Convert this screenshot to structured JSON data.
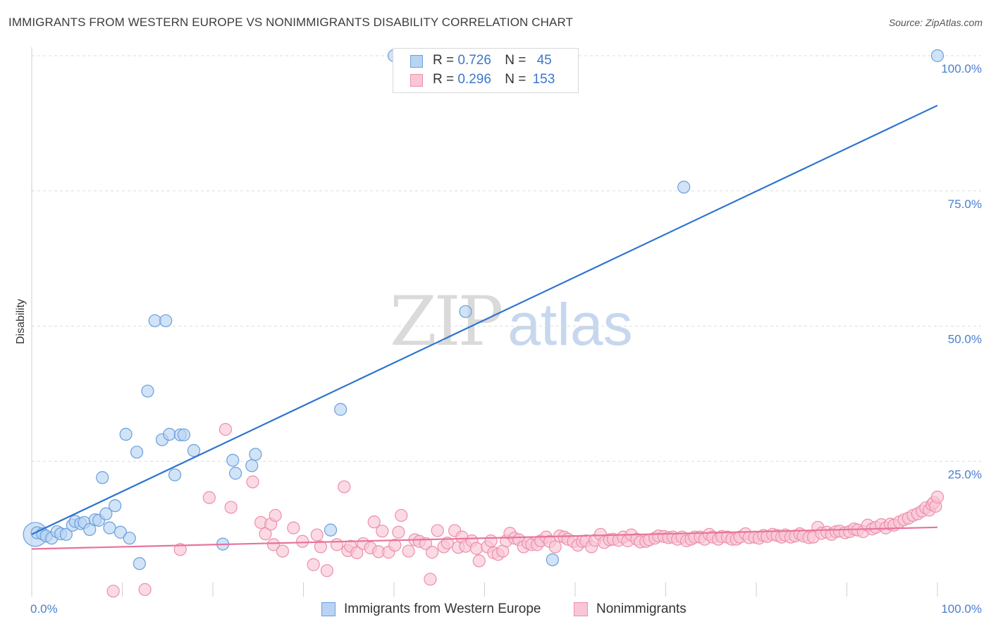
{
  "header": {
    "title": "IMMIGRANTS FROM WESTERN EUROPE VS NONIMMIGRANTS DISABILITY CORRELATION CHART",
    "source": "Source: ZipAtlas.com"
  },
  "watermark": {
    "zip": "ZIP",
    "atlas": "atlas"
  },
  "legend": {
    "rows": [
      {
        "r_label": "R =",
        "r_value": "0.726",
        "n_label": "N =",
        "n_value": "45"
      },
      {
        "r_label": "R =",
        "r_value": "0.296",
        "n_label": "N =",
        "n_value": "153"
      }
    ]
  },
  "bottom_legend": {
    "items": [
      {
        "label": "Immigrants from Western Europe"
      },
      {
        "label": "Nonimmigrants"
      }
    ]
  },
  "colors": {
    "blue_fill": "#b9d4f3",
    "blue_stroke": "#6a9fdc",
    "blue_line": "#2f74d0",
    "pink_fill": "#f9c6d6",
    "pink_stroke": "#ec8fac",
    "pink_line": "#e8739a",
    "grid": "#dcdcdc",
    "axis_text": "#4a7fcf"
  },
  "chart_data": {
    "type": "scatter",
    "title": "IMMIGRANTS FROM WESTERN EUROPE VS NONIMMIGRANTS DISABILITY CORRELATION CHART",
    "xlabel": "",
    "ylabel": "Disability",
    "xlim": [
      0,
      100
    ],
    "ylim": [
      0,
      100
    ],
    "x_tick_labels": [
      "0.0%",
      "100.0%"
    ],
    "y_ticks": [
      25,
      50,
      75,
      100
    ],
    "y_tick_labels": [
      "25.0%",
      "50.0%",
      "75.0%",
      "100.0%"
    ],
    "grid": true,
    "legend_position": "top-center",
    "series": [
      {
        "name": "Immigrants from Western Europe",
        "color": "blue",
        "R": 0.726,
        "N": 45,
        "trend": {
          "x": [
            0,
            100
          ],
          "y": [
            11.5,
            90.8
          ]
        },
        "points": [
          [
            0.4,
            11.5,
            "big"
          ],
          [
            0.6,
            11.8
          ],
          [
            1.2,
            11.6
          ],
          [
            1.6,
            11.2
          ],
          [
            2.2,
            10.8
          ],
          [
            2.8,
            12.0
          ],
          [
            3.2,
            11.6
          ],
          [
            3.8,
            11.5
          ],
          [
            4.5,
            13.2
          ],
          [
            4.8,
            13.9
          ],
          [
            5.4,
            13.5
          ],
          [
            5.8,
            13.7
          ],
          [
            6.4,
            12.4
          ],
          [
            7.0,
            14.2
          ],
          [
            7.4,
            14.1
          ],
          [
            7.8,
            22.0
          ],
          [
            8.2,
            15.3
          ],
          [
            8.6,
            12.7
          ],
          [
            9.2,
            16.8
          ],
          [
            9.8,
            11.9
          ],
          [
            10.4,
            30.0
          ],
          [
            10.8,
            10.8
          ],
          [
            11.6,
            26.7
          ],
          [
            11.9,
            6.1
          ],
          [
            12.8,
            38.0
          ],
          [
            13.6,
            51.0
          ],
          [
            14.4,
            29.0
          ],
          [
            14.8,
            51.0
          ],
          [
            15.2,
            30.0
          ],
          [
            15.8,
            22.5
          ],
          [
            16.4,
            29.9
          ],
          [
            16.8,
            29.9
          ],
          [
            17.9,
            27.0
          ],
          [
            21.1,
            9.7
          ],
          [
            22.2,
            25.2
          ],
          [
            22.5,
            22.8
          ],
          [
            24.3,
            24.2
          ],
          [
            24.7,
            26.3
          ],
          [
            33.0,
            12.3
          ],
          [
            34.1,
            34.6
          ],
          [
            40.0,
            100.0
          ],
          [
            47.9,
            52.7
          ],
          [
            57.5,
            6.8
          ],
          [
            72.0,
            75.7
          ],
          [
            100.0,
            100.0
          ]
        ]
      },
      {
        "name": "Nonimmigrants",
        "color": "pink",
        "R": 0.296,
        "N": 153,
        "trend": {
          "x": [
            0,
            100
          ],
          "y": [
            8.8,
            12.8
          ]
        },
        "points": [
          [
            9.0,
            1.0
          ],
          [
            12.5,
            1.3
          ],
          [
            16.4,
            8.7
          ],
          [
            19.6,
            18.3
          ],
          [
            21.4,
            30.9
          ],
          [
            22.0,
            16.5
          ],
          [
            24.4,
            21.2
          ],
          [
            25.3,
            13.7
          ],
          [
            25.8,
            11.6
          ],
          [
            26.4,
            13.4
          ],
          [
            26.7,
            9.6
          ],
          [
            26.9,
            15.0
          ],
          [
            27.7,
            8.4
          ],
          [
            28.9,
            12.7
          ],
          [
            29.9,
            10.2
          ],
          [
            31.1,
            5.9
          ],
          [
            31.5,
            11.4
          ],
          [
            31.9,
            9.2
          ],
          [
            32.6,
            4.8
          ],
          [
            33.7,
            9.6
          ],
          [
            34.5,
            20.3
          ],
          [
            34.9,
            8.5
          ],
          [
            35.2,
            9.3
          ],
          [
            35.9,
            8.1
          ],
          [
            36.6,
            9.8
          ],
          [
            37.4,
            9.0
          ],
          [
            37.8,
            13.8
          ],
          [
            38.3,
            8.3
          ],
          [
            38.7,
            12.1
          ],
          [
            39.4,
            8.2
          ],
          [
            40.1,
            9.5
          ],
          [
            40.5,
            11.9
          ],
          [
            40.8,
            15.0
          ],
          [
            41.6,
            8.4
          ],
          [
            42.3,
            10.5
          ],
          [
            42.8,
            10.2
          ],
          [
            43.5,
            9.8
          ],
          [
            44.0,
            3.2
          ],
          [
            44.2,
            8.2
          ],
          [
            44.8,
            12.2
          ],
          [
            45.5,
            9.2
          ],
          [
            45.9,
            9.9
          ],
          [
            46.7,
            12.2
          ],
          [
            47.1,
            9.1
          ],
          [
            47.5,
            11.0
          ],
          [
            47.9,
            9.3
          ],
          [
            48.6,
            10.3
          ],
          [
            49.1,
            8.9
          ],
          [
            49.4,
            6.6
          ],
          [
            50.3,
            9.2
          ],
          [
            50.7,
            10.3
          ],
          [
            51.0,
            8.1
          ],
          [
            51.5,
            7.8
          ],
          [
            52.0,
            8.4
          ],
          [
            52.4,
            10.3
          ],
          [
            52.8,
            11.7
          ],
          [
            53.3,
            10.8
          ],
          [
            53.8,
            10.5
          ],
          [
            54.3,
            9.2
          ],
          [
            54.8,
            9.9
          ],
          [
            55.2,
            9.6
          ],
          [
            55.8,
            9.6
          ],
          [
            56.2,
            10.3
          ],
          [
            56.8,
            11.0
          ],
          [
            57.2,
            10.2
          ],
          [
            57.8,
            9.2
          ],
          [
            58.3,
            11.2
          ],
          [
            58.8,
            11.0
          ],
          [
            59.2,
            10.6
          ],
          [
            59.8,
            10.2
          ],
          [
            60.3,
            9.5
          ],
          [
            60.8,
            10.2
          ],
          [
            61.2,
            10.3
          ],
          [
            61.8,
            9.2
          ],
          [
            62.2,
            10.4
          ],
          [
            62.8,
            11.5
          ],
          [
            63.2,
            10.0
          ],
          [
            63.8,
            10.5
          ],
          [
            64.2,
            10.6
          ],
          [
            64.8,
            10.4
          ],
          [
            65.3,
            11.0
          ],
          [
            65.8,
            10.3
          ],
          [
            66.2,
            11.4
          ],
          [
            66.8,
            10.6
          ],
          [
            67.2,
            10.1
          ],
          [
            67.8,
            10.2
          ],
          [
            68.2,
            10.5
          ],
          [
            68.8,
            10.8
          ],
          [
            69.2,
            11.2
          ],
          [
            69.8,
            11.1
          ],
          [
            70.3,
            10.9
          ],
          [
            70.8,
            11.0
          ],
          [
            71.3,
            10.6
          ],
          [
            71.8,
            11.0
          ],
          [
            72.3,
            10.3
          ],
          [
            72.8,
            10.6
          ],
          [
            73.2,
            11.0
          ],
          [
            73.8,
            11.0
          ],
          [
            74.3,
            10.6
          ],
          [
            74.8,
            11.5
          ],
          [
            75.2,
            11.0
          ],
          [
            75.8,
            10.6
          ],
          [
            76.2,
            11.1
          ],
          [
            76.8,
            11.0
          ],
          [
            77.3,
            10.6
          ],
          [
            77.8,
            10.6
          ],
          [
            78.2,
            11.0
          ],
          [
            78.8,
            11.6
          ],
          [
            79.2,
            10.9
          ],
          [
            79.8,
            11.0
          ],
          [
            80.3,
            10.8
          ],
          [
            80.8,
            11.3
          ],
          [
            81.2,
            11.1
          ],
          [
            81.8,
            11.5
          ],
          [
            82.3,
            11.3
          ],
          [
            82.8,
            11.0
          ],
          [
            83.2,
            11.4
          ],
          [
            83.8,
            11.0
          ],
          [
            84.3,
            11.2
          ],
          [
            84.8,
            11.6
          ],
          [
            85.2,
            11.2
          ],
          [
            85.8,
            10.9
          ],
          [
            86.3,
            11.0
          ],
          [
            86.8,
            12.8
          ],
          [
            87.2,
            11.7
          ],
          [
            87.8,
            11.9
          ],
          [
            88.3,
            11.5
          ],
          [
            88.8,
            12.0
          ],
          [
            89.2,
            12.1
          ],
          [
            89.8,
            11.8
          ],
          [
            90.3,
            12.0
          ],
          [
            90.8,
            12.5
          ],
          [
            91.2,
            12.3
          ],
          [
            91.8,
            12.0
          ],
          [
            92.3,
            13.2
          ],
          [
            92.8,
            12.5
          ],
          [
            93.2,
            12.8
          ],
          [
            93.8,
            13.3
          ],
          [
            94.3,
            12.7
          ],
          [
            94.8,
            13.4
          ],
          [
            95.2,
            13.2
          ],
          [
            95.8,
            13.8
          ],
          [
            96.3,
            14.2
          ],
          [
            96.8,
            14.5
          ],
          [
            97.3,
            15.0
          ],
          [
            97.8,
            15.3
          ],
          [
            98.3,
            15.8
          ],
          [
            98.7,
            16.4
          ],
          [
            99.1,
            16.0
          ],
          [
            99.4,
            17.0
          ],
          [
            99.6,
            17.4
          ],
          [
            99.8,
            16.7
          ],
          [
            100.0,
            18.4
          ]
        ]
      }
    ]
  }
}
